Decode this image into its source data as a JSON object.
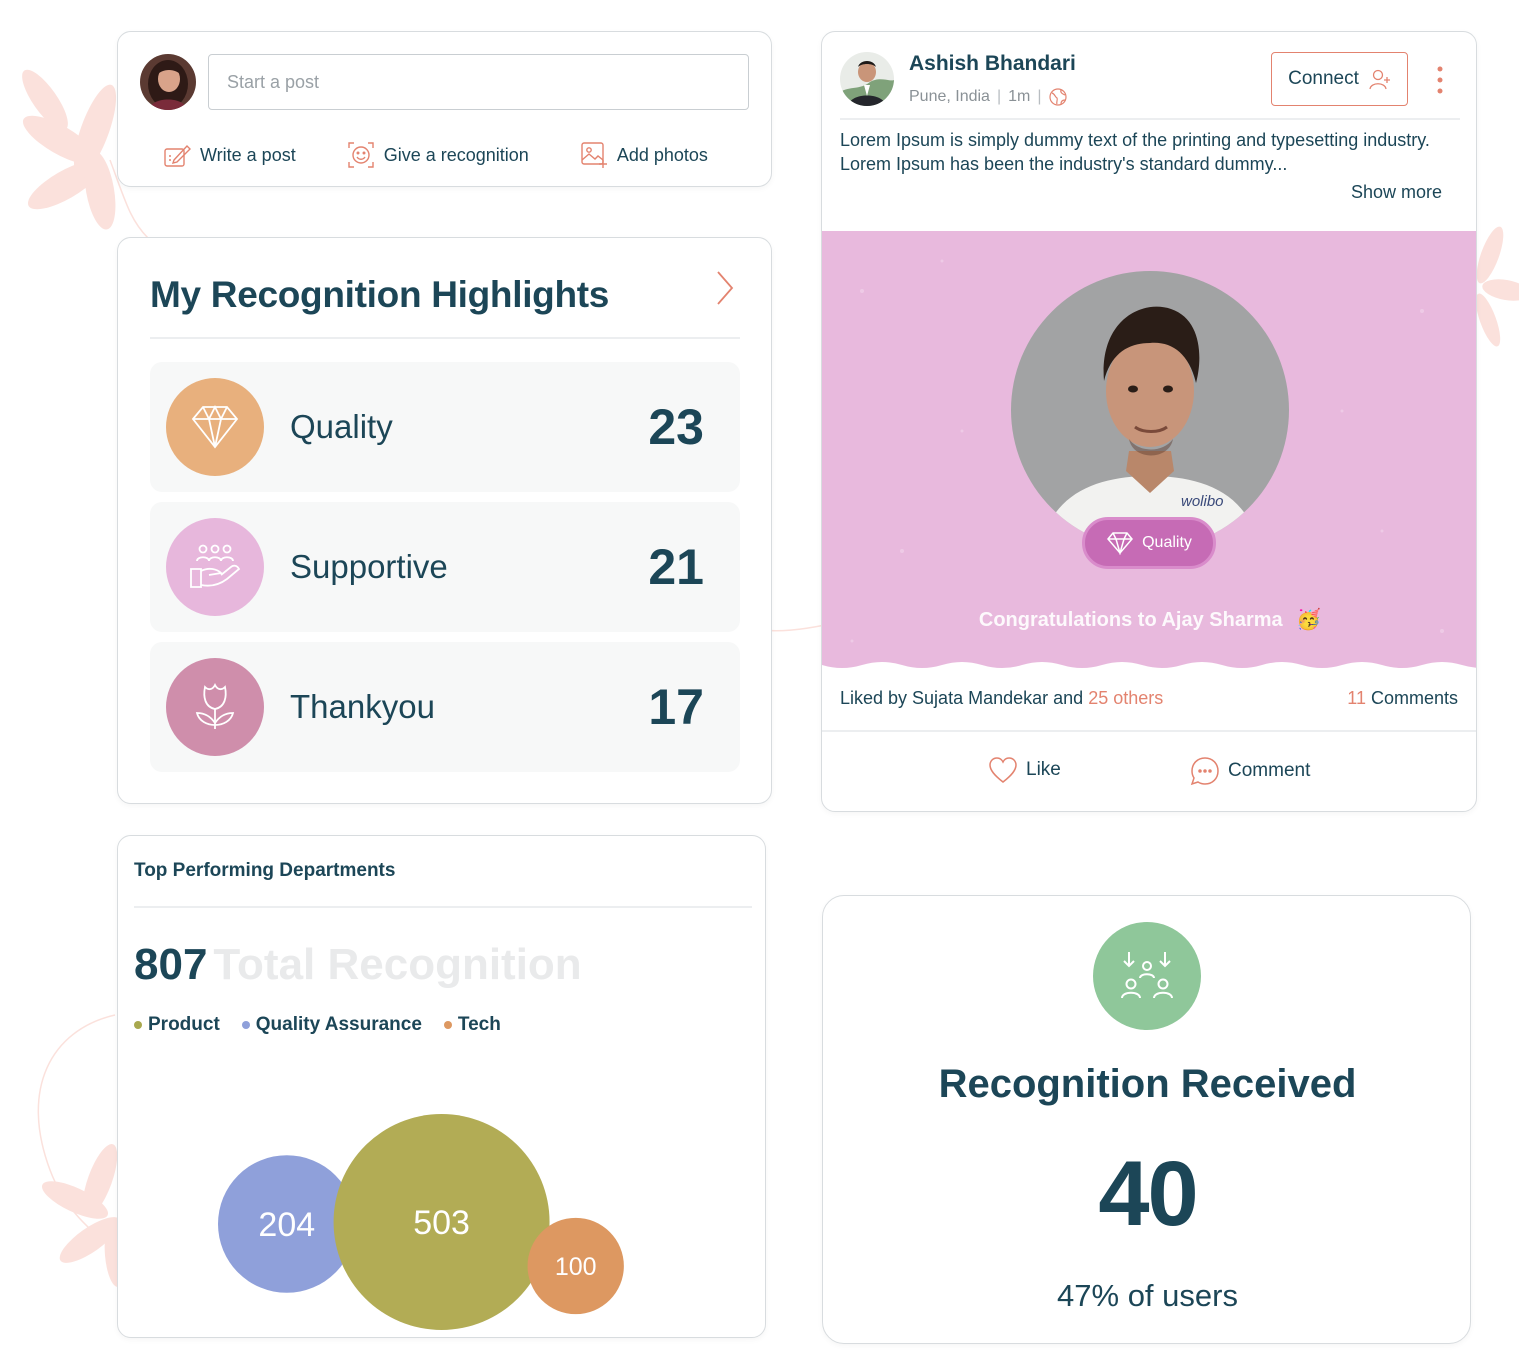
{
  "composer": {
    "placeholder": "Start a post",
    "actions": [
      {
        "label": "Write a post",
        "icon": "write-post-icon"
      },
      {
        "label": "Give a recognition",
        "icon": "recognition-icon"
      },
      {
        "label": "Add photos",
        "icon": "add-photo-icon"
      }
    ]
  },
  "highlights": {
    "title": "My Recognition Highlights",
    "items": [
      {
        "label": "Quality",
        "count": "23",
        "icon": "diamond-icon",
        "color": "#e8b07d"
      },
      {
        "label": "Supportive",
        "count": "21",
        "icon": "helping-hand-icon",
        "color": "#e7b7dc"
      },
      {
        "label": "Thankyou",
        "count": "17",
        "icon": "flower-icon",
        "color": "#cf8eab"
      }
    ]
  },
  "departments": {
    "title": "Top Performing Departments",
    "total_value": "807",
    "total_label": "Total Recognition",
    "legend": [
      {
        "label": "Product",
        "color": "#a8a84e"
      },
      {
        "label": "Quality Assurance",
        "color": "#8fa0da"
      },
      {
        "label": "Tech",
        "color": "#dd9861"
      }
    ]
  },
  "chart_data": {
    "type": "bubble",
    "title": "",
    "series": [
      {
        "name": "Quality Assurance",
        "value": 204,
        "color": "#8fa0da"
      },
      {
        "name": "Product",
        "value": 503,
        "color": "#b2ac55"
      },
      {
        "name": "Tech",
        "value": 100,
        "color": "#dd9861"
      }
    ]
  },
  "post": {
    "author": "Ashish Bhandari",
    "location": "Pune, India",
    "time": "1m",
    "connect_label": "Connect",
    "text_line1": "Lorem Ipsum is simply dummy text of the printing and typesetting industry.",
    "text_line2": "Lorem Ipsum has been the industry's standard dummy...",
    "show_more": "Show more",
    "badge_label": "Quality",
    "photo_text": "wolibo",
    "caption": "Congratulations to Ajay Sharma",
    "caption_emoji": "🥳",
    "likes_prefix": "Liked by Sujata Mandekar and",
    "likes_others": "25 others",
    "comments_count": "11",
    "comments_label": "Comments",
    "like_label": "Like",
    "comment_label": "Comment",
    "banner_color": "#e8b9dd",
    "accent_color": "#e3836f"
  },
  "recognition_received": {
    "title": "Recognition Received",
    "value": "40",
    "subtitle": "47% of users",
    "icon": "group-receive-icon",
    "icon_color": "#8fc79a"
  }
}
